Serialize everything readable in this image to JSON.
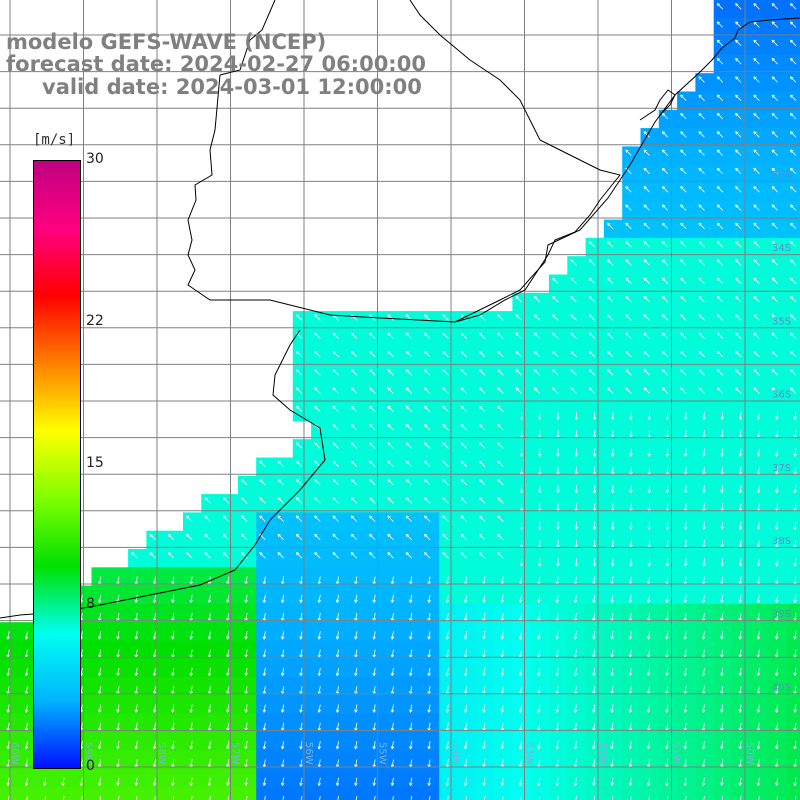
{
  "title": {
    "model": "modelo GEFS-WAVE (NCEP)",
    "forecast": "forecast date: 2024-02-27 06:00:00",
    "valid": "valid date: 2024-03-01 12:00:00"
  },
  "colorbar": {
    "unit": "[m/s]",
    "ticks": [
      {
        "label": "30",
        "value": 30
      },
      {
        "label": "22",
        "value": 22
      },
      {
        "label": "15",
        "value": 15
      },
      {
        "label": "8",
        "value": 8
      },
      {
        "label": "0",
        "value": 0
      }
    ],
    "range": [
      0,
      30
    ],
    "colors": [
      "#0010ff",
      "#00b4ff",
      "#00fff0",
      "#00e000",
      "#7fff00",
      "#ffff00",
      "#ff8000",
      "#ff0000",
      "#ff0080",
      "#c00080"
    ]
  },
  "lat_labels": [
    "33S",
    "34S",
    "35S",
    "36S",
    "37S",
    "38S",
    "39S",
    "40S"
  ],
  "lon_labels": [
    "60W",
    "59W",
    "58W",
    "57W",
    "56W",
    "55W",
    "54W",
    "53W",
    "52W",
    "51W",
    "50W"
  ],
  "grid": {
    "color": "#808080"
  },
  "land_color": "#ffffff",
  "coast_color": "#000000",
  "arrow_color": "#ffffff"
}
